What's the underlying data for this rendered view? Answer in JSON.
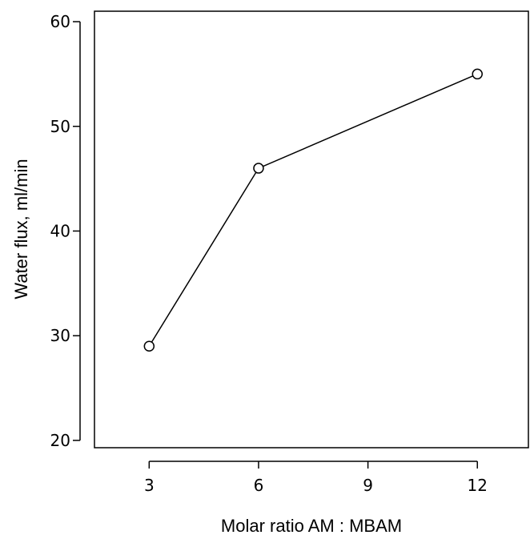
{
  "chart_data": {
    "type": "line",
    "title": "",
    "xlabel": "Molar ratio AM : MBAM",
    "ylabel": "Water flux, ml/min",
    "xlim": [
      1.5,
      13.4
    ],
    "ylim": [
      19.3,
      61.0
    ],
    "x_ticks": [
      3,
      6,
      9,
      12
    ],
    "y_ticks": [
      20,
      30,
      40,
      50,
      60
    ],
    "grid": false,
    "legend": "none",
    "marker": "open-circle",
    "line_color": "#000000",
    "series": [
      {
        "x": [
          3,
          6,
          12
        ],
        "values": [
          29,
          46,
          55
        ]
      }
    ]
  }
}
